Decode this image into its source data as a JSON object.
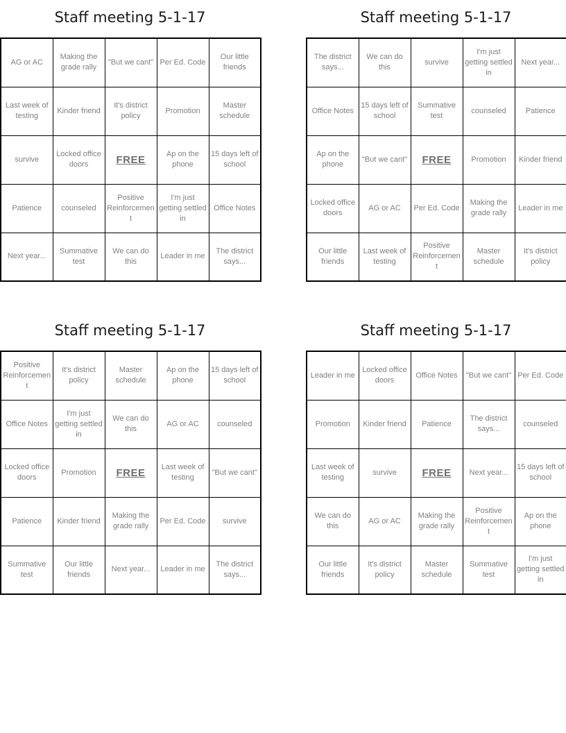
{
  "free_label": "FREE",
  "cards": [
    {
      "title": "Staff meeting 5-1-17",
      "grid": [
        [
          "AG or AC",
          "Making the grade rally",
          "\"But we cant\"",
          "Per Ed. Code",
          "Our little friends"
        ],
        [
          "Last week of testing",
          "Kinder friend",
          "It's district policy",
          "Promotion",
          "Master schedule"
        ],
        [
          "survive",
          "Locked office doors",
          "FREE",
          "Ap on the phone",
          "15 days left of school"
        ],
        [
          "Patience",
          "counseled",
          "Positive Reinforcement",
          "I'm just getting settled in",
          "Office Notes"
        ],
        [
          "Next year...",
          "Summative test",
          "We can do this",
          "Leader in me",
          "The district says..."
        ]
      ]
    },
    {
      "title": "Staff meeting 5-1-17",
      "grid": [
        [
          "The district says...",
          "We can do this",
          "survive",
          "I'm just getting settled in",
          "Next year..."
        ],
        [
          "Office Notes",
          "15 days left of school",
          "Summative test",
          "counseled",
          "Patience"
        ],
        [
          "Ap on the phone",
          "\"But we cant\"",
          "FREE",
          "Promotion",
          "Kinder friend"
        ],
        [
          "Locked office doors",
          "AG or AC",
          "Per Ed. Code",
          "Making the grade rally",
          "Leader in me"
        ],
        [
          "Our little friends",
          "Last week of testing",
          "Positive Reinforcement",
          "Master schedule",
          "It's district policy"
        ]
      ]
    },
    {
      "title": "Staff meeting 5-1-17",
      "grid": [
        [
          "Positive Reinforcement",
          "It's district policy",
          "Master schedule",
          "Ap on the phone",
          "15 days left of school"
        ],
        [
          "Office Notes",
          "I'm just getting settled in",
          "We can do this",
          "AG or AC",
          "counseled"
        ],
        [
          "Locked office doors",
          "Promotion",
          "FREE",
          "Last week of testing",
          "\"But we cant\""
        ],
        [
          "Patience",
          "Kinder friend",
          "Making the grade rally",
          "Per Ed. Code",
          "survive"
        ],
        [
          "Summative test",
          "Our little friends",
          "Next year...",
          "Leader in me",
          "The district says..."
        ]
      ]
    },
    {
      "title": "Staff meeting 5-1-17",
      "grid": [
        [
          "Leader in me",
          "Locked office doors",
          "Office Notes",
          "\"But we cant\"",
          "Per Ed. Code"
        ],
        [
          "Promotion",
          "Kinder friend",
          "Patience",
          "The district says...",
          "counseled"
        ],
        [
          "Last week of testing",
          "survive",
          "FREE",
          "Next year...",
          "15 days left of school"
        ],
        [
          "We can do this",
          "AG or AC",
          "Making the grade rally",
          "Positive Reinforcement",
          "Ap on the phone"
        ],
        [
          "Our little friends",
          "It's district policy",
          "Master schedule",
          "Summative test",
          "I'm just getting settled in"
        ]
      ]
    }
  ]
}
